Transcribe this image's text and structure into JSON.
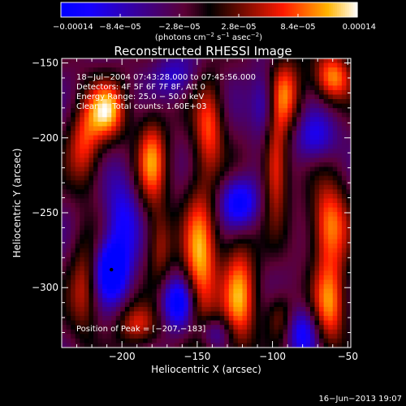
{
  "chart_data": {
    "type": "heatmap",
    "title": "Reconstructed RHESSI Image",
    "xlabel": "Heliocentric X (arcsec)",
    "ylabel": "Heliocentric Y (arcsec)",
    "xlim": [
      -240,
      -48
    ],
    "ylim": [
      -340,
      -147
    ],
    "x_ticks": [
      -200,
      -150,
      -100,
      -50
    ],
    "y_ticks": [
      -150,
      -200,
      -250,
      -300
    ],
    "x_tick_labels": [
      "−200",
      "−150",
      "−100",
      "−50"
    ],
    "y_tick_labels": [
      "−150",
      "−200",
      "−250",
      "−300"
    ],
    "colorbar": {
      "min": -0.00014,
      "max": 0.00014,
      "ticks": [
        -0.00014,
        -8.4e-05,
        -2.8e-05,
        2.8e-05,
        8.4e-05,
        0.00014
      ],
      "tick_labels": [
        "−0.00014",
        "−8.4e−05",
        "−2.8e−05",
        "2.8e−05",
        "8.4e−05",
        "0.00014"
      ],
      "units_text": "(photons cm",
      "units_exp1": "−2",
      "units_mid": " s",
      "units_exp2": "−1",
      "units_end": " asec",
      "units_exp3": "−2",
      "units_close": ")"
    },
    "annotations": [
      "18−Jul−2004 07:43:28.000 to 07:45:56.000",
      "Detectors: 4F 5F 6F 7F 8F, Att 0",
      "Energy Range: 25.0 − 50.0 keV",
      "Clean     Total counts: 1.60E+03"
    ],
    "peak_label": "Position of Peak = [−207,−183]",
    "peak": [
      -207,
      -183
    ],
    "dark_marker": [
      -207,
      -288
    ],
    "blobs": [
      {
        "x": -210,
        "y": -182,
        "v": 1.0,
        "sx": 9,
        "sy": 14
      },
      {
        "x": -180,
        "y": -215,
        "v": 0.85,
        "sx": 7,
        "sy": 22
      },
      {
        "x": -142,
        "y": -192,
        "v": 0.75,
        "sx": 7,
        "sy": 22
      },
      {
        "x": -92,
        "y": -170,
        "v": 0.8,
        "sx": 8,
        "sy": 18
      },
      {
        "x": -60,
        "y": -160,
        "v": 0.95,
        "sx": 9,
        "sy": 12
      },
      {
        "x": -225,
        "y": -205,
        "v": 0.7,
        "sx": 8,
        "sy": 20
      },
      {
        "x": -225,
        "y": -300,
        "v": 0.6,
        "sx": 7,
        "sy": 24
      },
      {
        "x": -175,
        "y": -272,
        "v": 0.55,
        "sx": 6,
        "sy": 18
      },
      {
        "x": -148,
        "y": -285,
        "v": 1.0,
        "sx": 8,
        "sy": 38
      },
      {
        "x": -122,
        "y": -305,
        "v": 0.9,
        "sx": 8,
        "sy": 30
      },
      {
        "x": -98,
        "y": -220,
        "v": 0.85,
        "sx": 6,
        "sy": 24
      },
      {
        "x": -62,
        "y": -258,
        "v": 0.95,
        "sx": 9,
        "sy": 20
      },
      {
        "x": -62,
        "y": -312,
        "v": 0.85,
        "sx": 8,
        "sy": 22
      },
      {
        "x": -190,
        "y": -325,
        "v": 0.6,
        "sx": 10,
        "sy": 10
      },
      {
        "x": -95,
        "y": -320,
        "v": 0.55,
        "sx": 7,
        "sy": 12
      },
      {
        "x": -207,
        "y": -288,
        "v": -1.0,
        "sx": 8,
        "sy": 14
      },
      {
        "x": -162,
        "y": -310,
        "v": -0.85,
        "sx": 8,
        "sy": 12
      },
      {
        "x": -122,
        "y": -243,
        "v": -0.85,
        "sx": 9,
        "sy": 12
      },
      {
        "x": -200,
        "y": -255,
        "v": -0.6,
        "sx": 8,
        "sy": 20
      },
      {
        "x": -105,
        "y": -178,
        "v": -0.6,
        "sx": 6,
        "sy": 16
      },
      {
        "x": -72,
        "y": -200,
        "v": -0.55,
        "sx": 10,
        "sy": 12
      },
      {
        "x": -165,
        "y": -160,
        "v": -0.45,
        "sx": 10,
        "sy": 10
      },
      {
        "x": -80,
        "y": -330,
        "v": -0.7,
        "sx": 8,
        "sy": 12
      },
      {
        "x": -140,
        "y": -330,
        "v": -0.5,
        "sx": 10,
        "sy": 8
      }
    ],
    "colors": {
      "neg_max": "#0000ff",
      "zero": "#000000",
      "pos_mid": "#ff2000",
      "pos_max": "#ffffff",
      "text": "#ffffff"
    }
  },
  "footer": {
    "timestamp": "16−Jun−2013 19:07"
  }
}
